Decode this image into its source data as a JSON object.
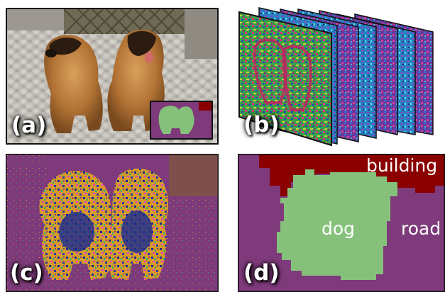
{
  "panels": {
    "a": {
      "label": "(a)"
    },
    "b": {
      "label": "(b)"
    },
    "c": {
      "label": "(c)"
    },
    "d": {
      "label": "(d)"
    }
  },
  "segmentation_labels": {
    "building": "building",
    "dog": "dog",
    "road": "road"
  },
  "colors": {
    "building": "#8a0000",
    "dog": "#86c17c",
    "road": "#7e3a7a",
    "background_purple": "#7e3a7a",
    "frame_border": "#111111"
  }
}
